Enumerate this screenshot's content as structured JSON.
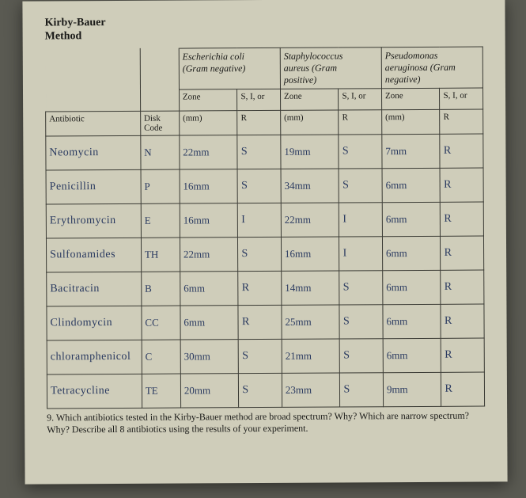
{
  "title_line1": "Kirby-Bauer",
  "title_line2": "Method",
  "organisms": {
    "ecoli": {
      "name": "Escherichia coli",
      "gram": "(Gram negative)"
    },
    "staph": {
      "name": "Staphylococcus aureus (Gram positive)",
      "line1": "Staphylococcus",
      "line2": "aureus (Gram",
      "line3": "positive)"
    },
    "pseudo": {
      "name": "Pseudomonas aeruginosa (Gram negative)",
      "line1": "Pseudomonas",
      "line2": "aeruginosa (Gram",
      "line3": "negative)"
    }
  },
  "col_headers": {
    "antibiotic": "Antibiotic",
    "disk_code_l1": "Disk",
    "disk_code_l2": "Code",
    "zone_l1": "Zone",
    "zone_l2": "(mm)",
    "sir_l1": "S, I, or",
    "sir_l2": "R"
  },
  "rows": [
    {
      "name": "Neomycin",
      "code": "N",
      "z1": "22mm",
      "s1": "S",
      "z2": "19mm",
      "s2": "S",
      "z3": "7mm",
      "s3": "R"
    },
    {
      "name": "Penicillin",
      "code": "P",
      "z1": "16mm",
      "s1": "S",
      "z2": "34mm",
      "s2": "S",
      "z3": "6mm",
      "s3": "R"
    },
    {
      "name": "Erythromycin",
      "code": "E",
      "z1": "16mm",
      "s1": "I",
      "z2": "22mm",
      "s2": "I",
      "z3": "6mm",
      "s3": "R"
    },
    {
      "name": "Sulfonamides",
      "code": "TH",
      "z1": "22mm",
      "s1": "S",
      "z2": "16mm",
      "s2": "I",
      "z3": "6mm",
      "s3": "R"
    },
    {
      "name": "Bacitracin",
      "code": "B",
      "z1": "6mm",
      "s1": "R",
      "z2": "14mm",
      "s2": "S",
      "z3": "6mm",
      "s3": "R"
    },
    {
      "name": "Clindomycin",
      "code": "CC",
      "z1": "6mm",
      "s1": "R",
      "z2": "25mm",
      "s2": "S",
      "z3": "6mm",
      "s3": "R"
    },
    {
      "name": "chloramphenicol",
      "code": "C",
      "z1": "30mm",
      "s1": "S",
      "z2": "21mm",
      "s2": "S",
      "z3": "6mm",
      "s3": "R"
    },
    {
      "name": "Tetracycline",
      "code": "TE",
      "z1": "20mm",
      "s1": "S",
      "z2": "23mm",
      "s2": "S",
      "z3": "9mm",
      "s3": "R"
    }
  ],
  "question": "9. Which antibiotics tested in the Kirby-Bauer method are broad spectrum? Why? Which are narrow spectrum? Why? Describe all 8 antibiotics using the results of your experiment.",
  "colors": {
    "paper": "#cfcdba",
    "ink": "#1a1a18",
    "pen": "#2a3a60",
    "border": "#3a3a34",
    "bg": "#5a5a52"
  }
}
